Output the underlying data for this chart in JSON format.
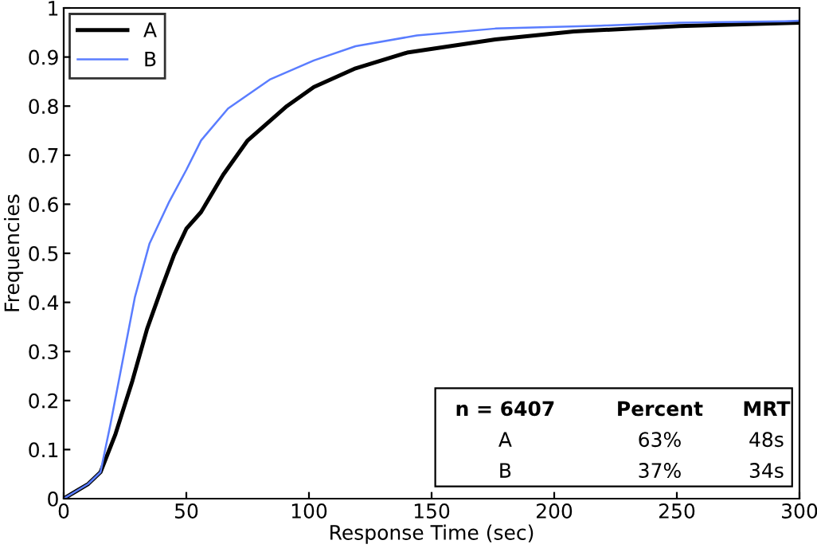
{
  "chart_data": {
    "type": "line",
    "xlabel": "Response Time (sec)",
    "ylabel": "Frequencies",
    "xlim": [
      0,
      300
    ],
    "ylim": [
      0,
      1
    ],
    "xticks": [
      0,
      50,
      100,
      150,
      200,
      250,
      300
    ],
    "yticks": [
      0,
      0.1,
      0.2,
      0.3,
      0.4,
      0.5,
      0.6,
      0.7,
      0.8,
      0.9,
      1
    ],
    "legend": "top left",
    "grid": false,
    "series": [
      {
        "name": "A",
        "color": "#000000",
        "x": [
          0,
          5,
          10,
          15,
          21,
          28,
          34,
          40,
          45,
          50,
          56,
          65,
          75,
          91,
          102,
          119,
          140,
          176,
          208,
          251,
          294,
          300
        ],
        "values": [
          0,
          0.015,
          0.03,
          0.054,
          0.13,
          0.24,
          0.346,
          0.43,
          0.497,
          0.55,
          0.584,
          0.66,
          0.73,
          0.8,
          0.839,
          0.877,
          0.909,
          0.936,
          0.952,
          0.963,
          0.969,
          0.97
        ]
      },
      {
        "name": "B",
        "color": "#5a7dff",
        "x": [
          0,
          5,
          10,
          15,
          19,
          24,
          29,
          35,
          43,
          50,
          56,
          67,
          84,
          102,
          119,
          144,
          176,
          219,
          251,
          294,
          300
        ],
        "values": [
          0,
          0.015,
          0.03,
          0.054,
          0.15,
          0.28,
          0.41,
          0.52,
          0.605,
          0.67,
          0.73,
          0.795,
          0.854,
          0.893,
          0.922,
          0.944,
          0.958,
          0.964,
          0.97,
          0.973,
          0.974
        ]
      }
    ],
    "annotations": [
      "n = 6407",
      "Percent",
      "MRT",
      "A",
      "63%",
      "48s",
      "B",
      "37%",
      "34s"
    ]
  }
}
